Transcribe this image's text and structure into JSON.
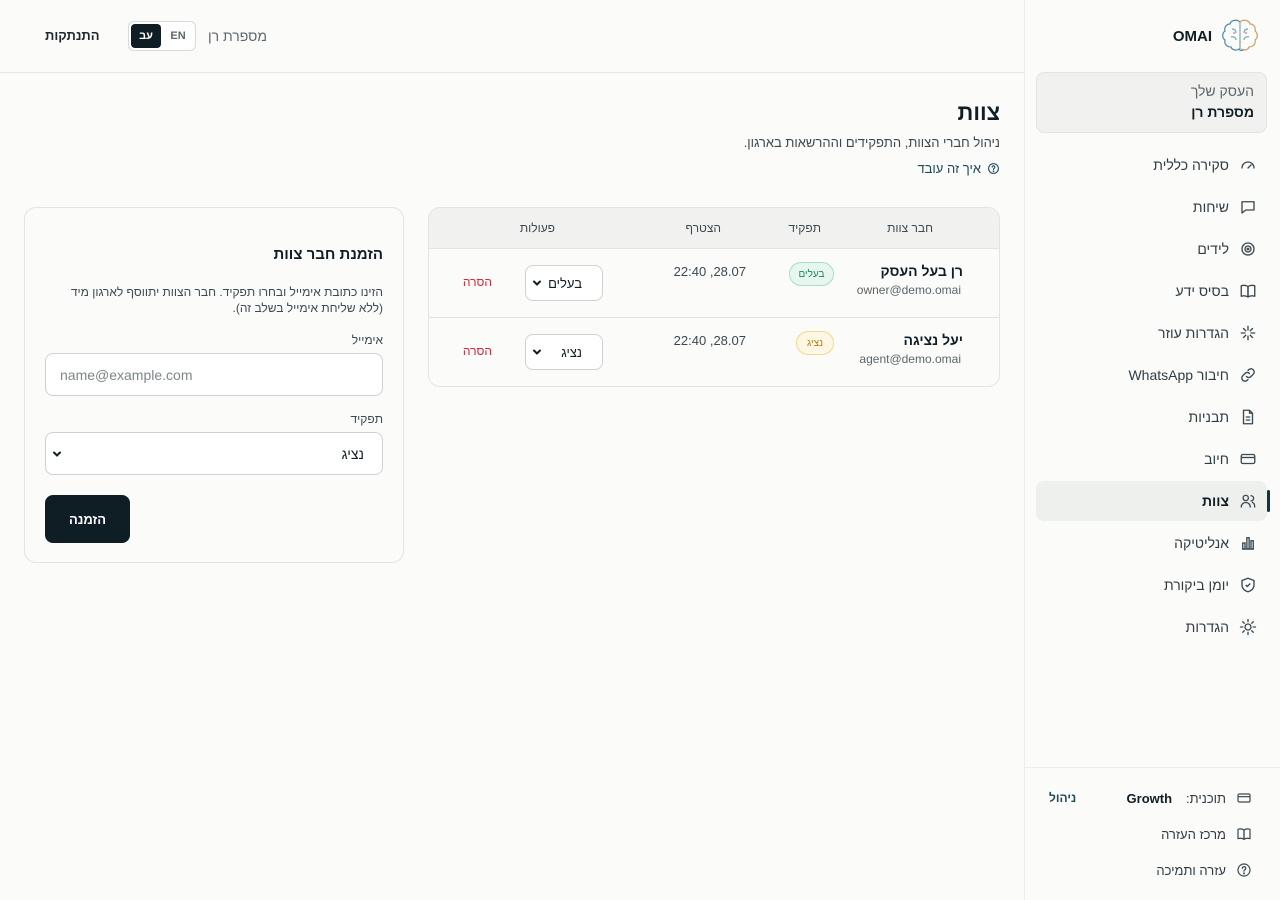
{
  "app": {
    "name": "OMAI"
  },
  "sidebar": {
    "business_label": "העסק  שלך",
    "business_name": "מספרת רן",
    "items": [
      {
        "label": "סקירה כללית",
        "icon": "gauge-icon"
      },
      {
        "label": "שיחות",
        "icon": "chat-bubble-icon"
      },
      {
        "label": "לידים",
        "icon": "target-icon"
      },
      {
        "label": "בסיס ידע",
        "icon": "book-icon"
      },
      {
        "label": "הגדרות עוזר",
        "icon": "sparkle-icon"
      },
      {
        "label": "חיבור WhatsApp",
        "icon": "link-icon"
      },
      {
        "label": "תבניות",
        "icon": "document-icon"
      },
      {
        "label": "חיוב",
        "icon": "credit-card-icon"
      },
      {
        "label": "צוות",
        "icon": "users-icon",
        "active": true
      },
      {
        "label": "אנליטיקה",
        "icon": "bar-chart-icon"
      },
      {
        "label": "יומן ביקורת",
        "icon": "shield-check-icon"
      },
      {
        "label": "הגדרות",
        "icon": "sun-gear-icon"
      }
    ],
    "plan_label": "תוכנית:",
    "plan_name": "Growth",
    "plan_manage": "ניהול",
    "help_center": "מרכז העזרה",
    "support": "עזרה ותמיכה"
  },
  "topbar": {
    "logout": "התנתקות",
    "lang_en": "EN",
    "lang_he": "עב",
    "business_name": "מספרת רן"
  },
  "page": {
    "title": "צוות",
    "subtitle": "ניהול חברי הצוות, התפקידים וההרשאות בארגון.",
    "how_it_works": "איך זה עובד"
  },
  "table": {
    "headers": {
      "member": "חבר צוות",
      "role": "תפקיד",
      "joined": "הצטרף",
      "actions": "פעולות"
    },
    "rows": [
      {
        "name": "רן בעל העסק",
        "email": "owner@demo.omai",
        "role_badge": "בעלים",
        "joined": "28.07, 22:40",
        "role_select": "בעלים",
        "remove": "הסרה"
      },
      {
        "name": "יעל נציגה",
        "email": "agent@demo.omai",
        "role_badge": "נציג",
        "joined": "28.07, 22:40",
        "role_select": "נציג",
        "remove": "הסרה"
      }
    ]
  },
  "invite": {
    "title": "הזמנת חבר צוות",
    "description": "הזינו כתובת אימייל ובחרו תפקיד. חבר הצוות יתווסף לארגון מיד (ללא שליחת אימייל בשלב זה).",
    "email_label": "אימייל",
    "email_placeholder": "name@example.com",
    "email_value": "",
    "role_label": "תפקיד",
    "role_value": "נציג",
    "submit": "הזמנה"
  },
  "colors": {
    "accent": "#0f1d24",
    "owner_badge": "#1f8a58",
    "agent_badge": "#b27a12",
    "danger": "#d0283e",
    "link": "#1d4a58"
  }
}
